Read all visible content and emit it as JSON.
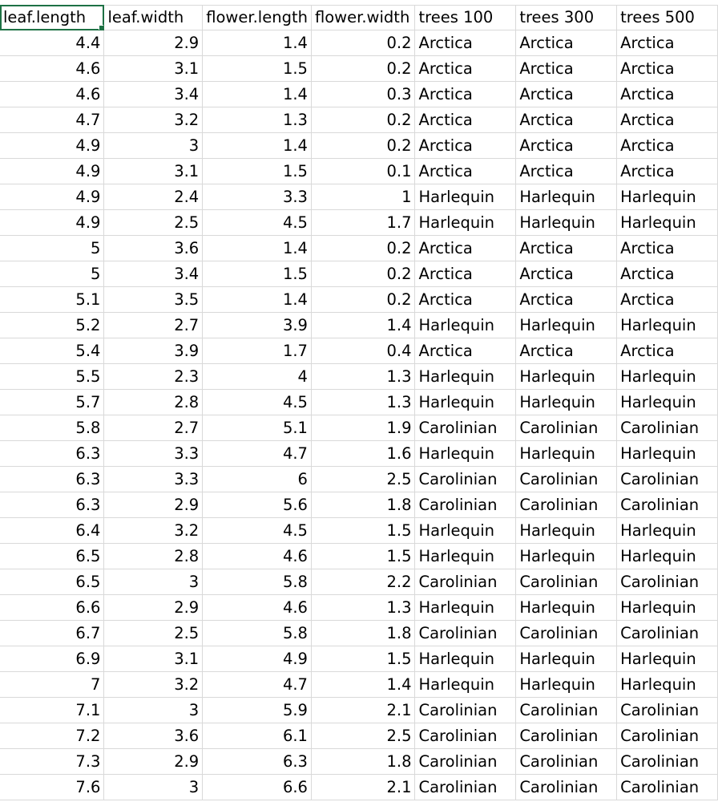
{
  "sheet": {
    "columns": [
      "leaf.length",
      "leaf.width",
      "flower.length",
      "flower.width",
      "trees 100",
      "trees 300",
      "trees 500"
    ],
    "rows": [
      [
        "4.4",
        "2.9",
        "1.4",
        "0.2",
        "Arctica",
        "Arctica",
        "Arctica"
      ],
      [
        "4.6",
        "3.1",
        "1.5",
        "0.2",
        "Arctica",
        "Arctica",
        "Arctica"
      ],
      [
        "4.6",
        "3.4",
        "1.4",
        "0.3",
        "Arctica",
        "Arctica",
        "Arctica"
      ],
      [
        "4.7",
        "3.2",
        "1.3",
        "0.2",
        "Arctica",
        "Arctica",
        "Arctica"
      ],
      [
        "4.9",
        "3",
        "1.4",
        "0.2",
        "Arctica",
        "Arctica",
        "Arctica"
      ],
      [
        "4.9",
        "3.1",
        "1.5",
        "0.1",
        "Arctica",
        "Arctica",
        "Arctica"
      ],
      [
        "4.9",
        "2.4",
        "3.3",
        "1",
        "Harlequin",
        "Harlequin",
        "Harlequin"
      ],
      [
        "4.9",
        "2.5",
        "4.5",
        "1.7",
        "Harlequin",
        "Harlequin",
        "Harlequin"
      ],
      [
        "5",
        "3.6",
        "1.4",
        "0.2",
        "Arctica",
        "Arctica",
        "Arctica"
      ],
      [
        "5",
        "3.4",
        "1.5",
        "0.2",
        "Arctica",
        "Arctica",
        "Arctica"
      ],
      [
        "5.1",
        "3.5",
        "1.4",
        "0.2",
        "Arctica",
        "Arctica",
        "Arctica"
      ],
      [
        "5.2",
        "2.7",
        "3.9",
        "1.4",
        "Harlequin",
        "Harlequin",
        "Harlequin"
      ],
      [
        "5.4",
        "3.9",
        "1.7",
        "0.4",
        "Arctica",
        "Arctica",
        "Arctica"
      ],
      [
        "5.5",
        "2.3",
        "4",
        "1.3",
        "Harlequin",
        "Harlequin",
        "Harlequin"
      ],
      [
        "5.7",
        "2.8",
        "4.5",
        "1.3",
        "Harlequin",
        "Harlequin",
        "Harlequin"
      ],
      [
        "5.8",
        "2.7",
        "5.1",
        "1.9",
        "Carolinian",
        "Carolinian",
        "Carolinian"
      ],
      [
        "6.3",
        "3.3",
        "4.7",
        "1.6",
        "Harlequin",
        "Harlequin",
        "Harlequin"
      ],
      [
        "6.3",
        "3.3",
        "6",
        "2.5",
        "Carolinian",
        "Carolinian",
        "Carolinian"
      ],
      [
        "6.3",
        "2.9",
        "5.6",
        "1.8",
        "Carolinian",
        "Carolinian",
        "Carolinian"
      ],
      [
        "6.4",
        "3.2",
        "4.5",
        "1.5",
        "Harlequin",
        "Harlequin",
        "Harlequin"
      ],
      [
        "6.5",
        "2.8",
        "4.6",
        "1.5",
        "Harlequin",
        "Harlequin",
        "Harlequin"
      ],
      [
        "6.5",
        "3",
        "5.8",
        "2.2",
        "Carolinian",
        "Carolinian",
        "Carolinian"
      ],
      [
        "6.6",
        "2.9",
        "4.6",
        "1.3",
        "Harlequin",
        "Harlequin",
        "Harlequin"
      ],
      [
        "6.7",
        "2.5",
        "5.8",
        "1.8",
        "Carolinian",
        "Carolinian",
        "Carolinian"
      ],
      [
        "6.9",
        "3.1",
        "4.9",
        "1.5",
        "Harlequin",
        "Harlequin",
        "Harlequin"
      ],
      [
        "7",
        "3.2",
        "4.7",
        "1.4",
        "Harlequin",
        "Harlequin",
        "Harlequin"
      ],
      [
        "7.1",
        "3",
        "5.9",
        "2.1",
        "Carolinian",
        "Carolinian",
        "Carolinian"
      ],
      [
        "7.2",
        "3.6",
        "6.1",
        "2.5",
        "Carolinian",
        "Carolinian",
        "Carolinian"
      ],
      [
        "7.3",
        "2.9",
        "6.3",
        "1.8",
        "Carolinian",
        "Carolinian",
        "Carolinian"
      ],
      [
        "7.6",
        "3",
        "6.6",
        "2.1",
        "Carolinian",
        "Carolinian",
        "Carolinian"
      ]
    ],
    "selected_cell": "leaf.length",
    "selection_color": "#1e7145",
    "gridline_color": "#d9d9d9"
  }
}
